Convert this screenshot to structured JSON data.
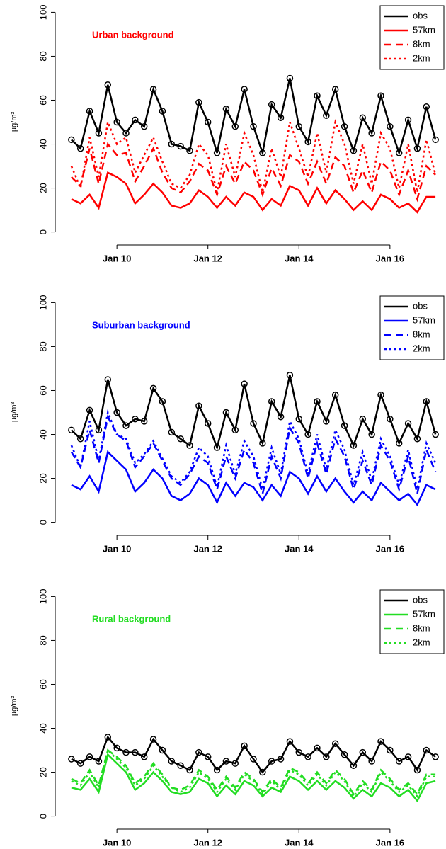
{
  "chart_data": [
    {
      "type": "line",
      "title": "Urban background",
      "title_color": "#ff0000",
      "y_label": "µg/m³",
      "x": [
        9,
        9.2,
        9.4,
        9.6,
        9.8,
        10,
        10.2,
        10.4,
        10.6,
        10.8,
        11,
        11.2,
        11.4,
        11.6,
        11.8,
        12,
        12.2,
        12.4,
        12.6,
        12.8,
        13,
        13.2,
        13.4,
        13.6,
        13.8,
        14,
        14.2,
        14.4,
        14.6,
        14.8,
        15,
        15.2,
        15.4,
        15.6,
        15.8,
        16,
        16.2,
        16.4,
        16.6,
        16.8,
        17
      ],
      "series": [
        {
          "name": "obs",
          "color": "#000000",
          "linestyle": "solid",
          "marker": "circle",
          "values": [
            42,
            38,
            55,
            45,
            67,
            50,
            45,
            51,
            48,
            65,
            55,
            40,
            39,
            37,
            59,
            50,
            36,
            56,
            48,
            65,
            48,
            36,
            58,
            52,
            70,
            48,
            41,
            62,
            53,
            65,
            48,
            37,
            52,
            45,
            62,
            48,
            36,
            51,
            38,
            57,
            42
          ]
        },
        {
          "name": "57km",
          "color": "#ff0000",
          "linestyle": "solid",
          "values": [
            15,
            13,
            17,
            11,
            27,
            25,
            22,
            13,
            17,
            22,
            18,
            12,
            11,
            13,
            19,
            16,
            11,
            16,
            12,
            18,
            16,
            10,
            15,
            12,
            21,
            19,
            12,
            20,
            13,
            19,
            15,
            10,
            14,
            10,
            17,
            15,
            11,
            13,
            9,
            16,
            16
          ]
        },
        {
          "name": "8km",
          "color": "#ff0000",
          "linestyle": "dashed",
          "values": [
            25,
            21,
            38,
            22,
            40,
            35,
            36,
            23,
            30,
            38,
            27,
            20,
            18,
            23,
            31,
            28,
            17,
            30,
            22,
            32,
            28,
            17,
            29,
            21,
            35,
            32,
            22,
            32,
            22,
            34,
            30,
            18,
            28,
            18,
            32,
            28,
            17,
            28,
            15,
            30,
            26
          ]
        },
        {
          "name": "2km",
          "color": "#ff0000",
          "linestyle": "dotted",
          "values": [
            30,
            20,
            43,
            25,
            50,
            40,
            43,
            27,
            35,
            43,
            32,
            22,
            20,
            26,
            40,
            35,
            18,
            40,
            25,
            45,
            35,
            18,
            38,
            25,
            50,
            38,
            25,
            45,
            27,
            50,
            40,
            22,
            40,
            22,
            45,
            38,
            20,
            40,
            18,
            42,
            26
          ]
        }
      ],
      "xlim": [
        8.8,
        17.2
      ],
      "xticks": [
        {
          "value": 10,
          "label": "Jan 10"
        },
        {
          "value": 12,
          "label": "Jan 12"
        },
        {
          "value": 14,
          "label": "Jan 14"
        },
        {
          "value": 16,
          "label": "Jan 16"
        }
      ],
      "ylim": [
        -4,
        104
      ],
      "yticks": [
        0,
        20,
        40,
        60,
        80,
        100
      ],
      "legend": "top-right"
    },
    {
      "type": "line",
      "title": "Suburban background",
      "title_color": "#0000ff",
      "y_label": "µg/m³",
      "x": [
        9,
        9.2,
        9.4,
        9.6,
        9.8,
        10,
        10.2,
        10.4,
        10.6,
        10.8,
        11,
        11.2,
        11.4,
        11.6,
        11.8,
        12,
        12.2,
        12.4,
        12.6,
        12.8,
        13,
        13.2,
        13.4,
        13.6,
        13.8,
        14,
        14.2,
        14.4,
        14.6,
        14.8,
        15,
        15.2,
        15.4,
        15.6,
        15.8,
        16,
        16.2,
        16.4,
        16.6,
        16.8,
        17
      ],
      "series": [
        {
          "name": "obs",
          "color": "#000000",
          "linestyle": "solid",
          "marker": "circle",
          "values": [
            42,
            38,
            51,
            42,
            65,
            50,
            44,
            47,
            46,
            61,
            55,
            41,
            38,
            35,
            53,
            45,
            34,
            50,
            42,
            63,
            45,
            36,
            55,
            48,
            67,
            47,
            40,
            55,
            46,
            58,
            44,
            35,
            47,
            40,
            58,
            47,
            36,
            45,
            38,
            55,
            40
          ]
        },
        {
          "name": "57km",
          "color": "#0000ff",
          "linestyle": "solid",
          "values": [
            17,
            15,
            21,
            14,
            32,
            28,
            24,
            14,
            18,
            24,
            20,
            12,
            10,
            13,
            20,
            17,
            9,
            18,
            12,
            18,
            16,
            10,
            17,
            12,
            23,
            20,
            13,
            21,
            14,
            20,
            14,
            9,
            14,
            10,
            18,
            14,
            10,
            13,
            8,
            17,
            15
          ]
        },
        {
          "name": "8km",
          "color": "#0000ff",
          "linestyle": "dashed",
          "values": [
            32,
            25,
            42,
            27,
            48,
            40,
            37,
            25,
            30,
            36,
            28,
            20,
            17,
            22,
            30,
            27,
            15,
            30,
            20,
            33,
            27,
            13,
            30,
            20,
            43,
            36,
            20,
            36,
            22,
            38,
            30,
            15,
            28,
            17,
            35,
            28,
            15,
            30,
            13,
            33,
            23
          ]
        },
        {
          "name": "2km",
          "color": "#0000ff",
          "linestyle": "dotted",
          "values": [
            35,
            25,
            46,
            28,
            50,
            40,
            38,
            27,
            31,
            37,
            29,
            21,
            18,
            23,
            34,
            30,
            16,
            35,
            22,
            37,
            30,
            15,
            34,
            22,
            46,
            38,
            22,
            40,
            24,
            42,
            33,
            17,
            32,
            19,
            38,
            30,
            17,
            33,
            15,
            36,
            27
          ]
        }
      ],
      "xlim": [
        8.8,
        17.2
      ],
      "xticks": [
        {
          "value": 10,
          "label": "Jan 10"
        },
        {
          "value": 12,
          "label": "Jan 12"
        },
        {
          "value": 14,
          "label": "Jan 14"
        },
        {
          "value": 16,
          "label": "Jan 16"
        }
      ],
      "ylim": [
        -4,
        104
      ],
      "yticks": [
        0,
        20,
        40,
        60,
        80,
        100
      ],
      "legend": "top-right"
    },
    {
      "type": "line",
      "title": "Rural background",
      "title_color": "#22dd22",
      "y_label": "µg/m³",
      "x": [
        9,
        9.2,
        9.4,
        9.6,
        9.8,
        10,
        10.2,
        10.4,
        10.6,
        10.8,
        11,
        11.2,
        11.4,
        11.6,
        11.8,
        12,
        12.2,
        12.4,
        12.6,
        12.8,
        13,
        13.2,
        13.4,
        13.6,
        13.8,
        14,
        14.2,
        14.4,
        14.6,
        14.8,
        15,
        15.2,
        15.4,
        15.6,
        15.8,
        16,
        16.2,
        16.4,
        16.6,
        16.8,
        17
      ],
      "series": [
        {
          "name": "obs",
          "color": "#000000",
          "linestyle": "solid",
          "marker": "circle",
          "values": [
            26,
            24,
            27,
            25,
            36,
            31,
            29,
            29,
            27,
            35,
            30,
            25,
            23,
            21,
            29,
            27,
            21,
            25,
            24,
            32,
            26,
            20,
            25,
            26,
            34,
            29,
            27,
            31,
            27,
            33,
            28,
            23,
            29,
            25,
            34,
            30,
            25,
            27,
            21,
            30,
            27
          ]
        },
        {
          "name": "57km",
          "color": "#22dd22",
          "linestyle": "solid",
          "values": [
            13,
            12,
            17,
            11,
            28,
            24,
            20,
            12,
            15,
            20,
            16,
            11,
            10,
            11,
            17,
            15,
            9,
            14,
            10,
            16,
            14,
            9,
            13,
            11,
            18,
            16,
            12,
            16,
            12,
            16,
            13,
            8,
            12,
            9,
            15,
            13,
            9,
            12,
            7,
            15,
            16
          ]
        },
        {
          "name": "8km",
          "color": "#22dd22",
          "linestyle": "dashed",
          "values": [
            17,
            15,
            21,
            14,
            30,
            27,
            23,
            15,
            18,
            24,
            19,
            13,
            12,
            14,
            21,
            18,
            12,
            18,
            13,
            20,
            17,
            11,
            17,
            13,
            22,
            20,
            15,
            20,
            15,
            21,
            17,
            10,
            16,
            12,
            21,
            17,
            12,
            15,
            10,
            19,
            19
          ]
        },
        {
          "name": "2km",
          "color": "#22dd22",
          "linestyle": "dotted",
          "values": [
            16,
            14,
            20,
            13,
            30,
            26,
            22,
            14,
            17,
            23,
            18,
            13,
            11,
            13,
            20,
            17,
            11,
            17,
            12,
            19,
            16,
            10,
            16,
            12,
            21,
            19,
            14,
            19,
            14,
            20,
            16,
            9,
            15,
            11,
            20,
            16,
            11,
            14,
            9,
            18,
            18
          ]
        }
      ],
      "xlim": [
        8.8,
        17.2
      ],
      "xticks": [
        {
          "value": 10,
          "label": "Jan 10"
        },
        {
          "value": 12,
          "label": "Jan 12"
        },
        {
          "value": 14,
          "label": "Jan 14"
        },
        {
          "value": 16,
          "label": "Jan 16"
        }
      ],
      "ylim": [
        -4,
        104
      ],
      "yticks": [
        0,
        20,
        40,
        60,
        80,
        100
      ],
      "legend": "top-right"
    }
  ]
}
